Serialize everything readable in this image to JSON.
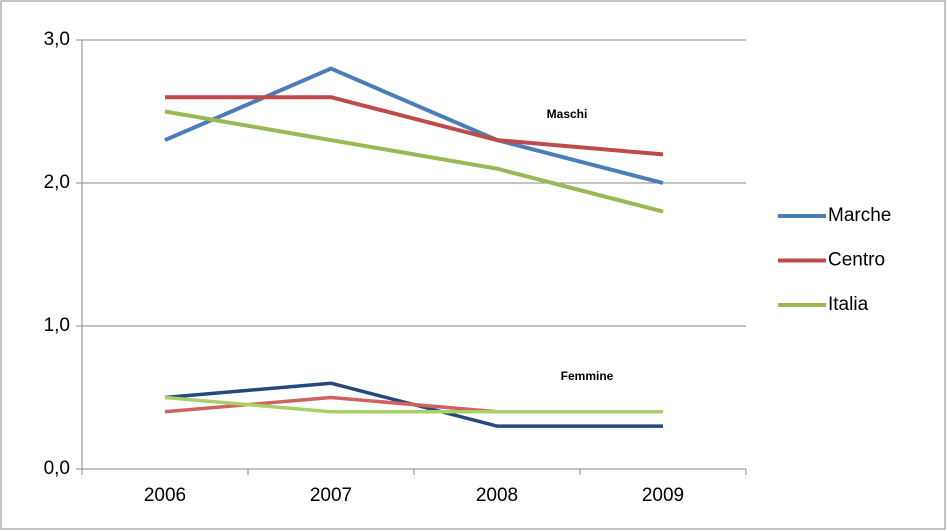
{
  "chart_data": {
    "type": "line",
    "categories": [
      "2006",
      "2007",
      "2008",
      "2009"
    ],
    "series": [
      {
        "name": "Marche",
        "color": "#4a7ebb",
        "values": [
          2.3,
          2.8,
          2.3,
          2.0
        ]
      },
      {
        "name": "Centro",
        "color": "#be4b48",
        "values": [
          2.6,
          2.6,
          2.3,
          2.2
        ]
      },
      {
        "name": "Italia",
        "color": "#98b954",
        "values": [
          2.5,
          2.3,
          2.1,
          1.8
        ]
      }
    ],
    "female_series": [
      {
        "color": "#23497e",
        "values": [
          0.5,
          0.6,
          0.3,
          0.3
        ]
      },
      {
        "color": "#d0625f",
        "values": [
          0.4,
          0.5,
          0.4,
          0.4
        ]
      },
      {
        "color": "#a8d06a",
        "values": [
          0.5,
          0.4,
          0.4,
          0.4
        ]
      }
    ],
    "annotations": [
      "Maschi",
      "Femmine"
    ],
    "ylim": [
      0,
      3
    ],
    "yticks": [
      {
        "value": 0,
        "label": "0,0"
      },
      {
        "value": 1,
        "label": "1,0"
      },
      {
        "value": 2,
        "label": "2,0"
      },
      {
        "value": 3,
        "label": "3,0"
      }
    ],
    "grid": true,
    "legend": "right"
  }
}
